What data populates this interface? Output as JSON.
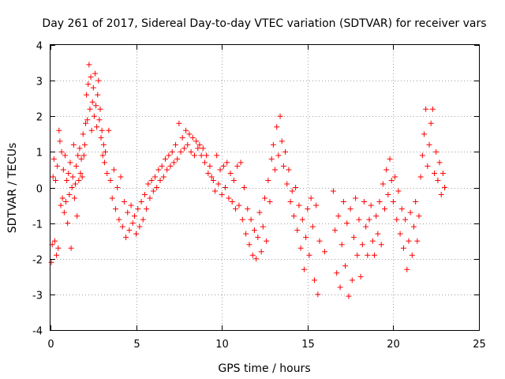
{
  "chart_data": {
    "type": "scatter",
    "title": "Day 261 of 2017, Sidereal Day-to-day VTEC variation (SDTVAR) for receiver vars",
    "xlabel": "GPS time / hours",
    "ylabel": "SDTVAR / TECUs",
    "xlim": [
      0,
      25
    ],
    "ylim": [
      -4,
      4
    ],
    "xticks": [
      0,
      5,
      10,
      15,
      20,
      25
    ],
    "yticks": [
      -4,
      -3,
      -2,
      -1,
      0,
      1,
      2,
      3,
      4
    ],
    "xtick_labels": [
      "0",
      "5",
      "10",
      "15",
      "20",
      "25"
    ],
    "ytick_labels": [
      "-4",
      "-3",
      "-2",
      "-1",
      "0",
      "1",
      "2",
      "3",
      "4"
    ],
    "grid": true,
    "marker": "+",
    "series": [
      {
        "name": "vars",
        "color": "#ff0000",
        "points": [
          [
            0.05,
            -2.1
          ],
          [
            0.1,
            -1.6
          ],
          [
            0.15,
            0.3
          ],
          [
            0.2,
            0.8
          ],
          [
            0.25,
            -1.5
          ],
          [
            0.3,
            0.2
          ],
          [
            0.35,
            -1.9
          ],
          [
            0.4,
            0.6
          ],
          [
            0.45,
            -1.7
          ],
          [
            0.5,
            1.6
          ],
          [
            0.55,
            1.3
          ],
          [
            0.6,
            -0.5
          ],
          [
            0.65,
            1.0
          ],
          [
            0.7,
            -0.3
          ],
          [
            0.75,
            0.5
          ],
          [
            0.8,
            -0.7
          ],
          [
            0.85,
            0.9
          ],
          [
            0.9,
            -0.4
          ],
          [
            0.95,
            0.2
          ],
          [
            1.0,
            -1.0
          ],
          [
            1.05,
            0.4
          ],
          [
            1.1,
            -0.2
          ],
          [
            1.15,
            0.7
          ],
          [
            1.2,
            -1.7
          ],
          [
            1.25,
            0.0
          ],
          [
            1.3,
            0.3
          ],
          [
            1.35,
            1.2
          ],
          [
            1.4,
            -0.3
          ],
          [
            1.45,
            0.1
          ],
          [
            1.5,
            0.6
          ],
          [
            1.55,
            -0.8
          ],
          [
            1.6,
            0.9
          ],
          [
            1.65,
            0.2
          ],
          [
            1.7,
            1.1
          ],
          [
            1.75,
            0.4
          ],
          [
            1.8,
            0.8
          ],
          [
            1.85,
            0.3
          ],
          [
            1.9,
            1.5
          ],
          [
            1.95,
            0.9
          ],
          [
            2.0,
            1.2
          ],
          [
            2.05,
            1.8
          ],
          [
            2.1,
            2.6
          ],
          [
            2.15,
            1.9
          ],
          [
            2.2,
            2.9
          ],
          [
            2.25,
            3.45
          ],
          [
            2.3,
            2.2
          ],
          [
            2.35,
            3.1
          ],
          [
            2.4,
            1.6
          ],
          [
            2.45,
            2.4
          ],
          [
            2.5,
            2.8
          ],
          [
            2.55,
            2.0
          ],
          [
            2.6,
            3.2
          ],
          [
            2.65,
            2.3
          ],
          [
            2.7,
            1.7
          ],
          [
            2.75,
            2.6
          ],
          [
            2.8,
            3.0
          ],
          [
            2.85,
            1.9
          ],
          [
            2.9,
            2.2
          ],
          [
            2.95,
            1.4
          ],
          [
            3.0,
            1.6
          ],
          [
            3.05,
            0.9
          ],
          [
            3.1,
            1.2
          ],
          [
            3.15,
            0.7
          ],
          [
            3.2,
            1.0
          ],
          [
            3.3,
            0.4
          ],
          [
            3.4,
            1.6
          ],
          [
            3.5,
            0.2
          ],
          [
            3.6,
            -0.3
          ],
          [
            3.7,
            0.5
          ],
          [
            3.8,
            -0.6
          ],
          [
            3.9,
            0.0
          ],
          [
            4.0,
            -0.9
          ],
          [
            4.1,
            0.3
          ],
          [
            4.2,
            -1.1
          ],
          [
            4.3,
            -0.4
          ],
          [
            4.4,
            -1.4
          ],
          [
            4.5,
            -0.7
          ],
          [
            4.6,
            -1.2
          ],
          [
            4.7,
            -0.5
          ],
          [
            4.8,
            -1.0
          ],
          [
            4.9,
            -0.8
          ],
          [
            5.0,
            -1.3
          ],
          [
            5.1,
            -0.6
          ],
          [
            5.2,
            -1.1
          ],
          [
            5.3,
            -0.4
          ],
          [
            5.4,
            -0.9
          ],
          [
            5.5,
            -0.2
          ],
          [
            5.6,
            -0.6
          ],
          [
            5.7,
            0.1
          ],
          [
            5.8,
            -0.3
          ],
          [
            5.9,
            0.2
          ],
          [
            6.0,
            -0.1
          ],
          [
            6.1,
            0.3
          ],
          [
            6.2,
            0.0
          ],
          [
            6.3,
            0.5
          ],
          [
            6.4,
            0.2
          ],
          [
            6.5,
            0.6
          ],
          [
            6.6,
            0.3
          ],
          [
            6.7,
            0.8
          ],
          [
            6.8,
            0.5
          ],
          [
            6.9,
            0.9
          ],
          [
            7.0,
            0.6
          ],
          [
            7.1,
            1.0
          ],
          [
            7.2,
            0.7
          ],
          [
            7.3,
            1.2
          ],
          [
            7.4,
            0.8
          ],
          [
            7.5,
            1.8
          ],
          [
            7.6,
            1.0
          ],
          [
            7.7,
            1.4
          ],
          [
            7.8,
            1.1
          ],
          [
            7.9,
            1.6
          ],
          [
            8.0,
            1.2
          ],
          [
            8.1,
            1.5
          ],
          [
            8.2,
            1.0
          ],
          [
            8.3,
            1.4
          ],
          [
            8.4,
            0.9
          ],
          [
            8.5,
            1.3
          ],
          [
            8.6,
            1.1
          ],
          [
            8.7,
            1.2
          ],
          [
            8.8,
            0.9
          ],
          [
            8.9,
            1.1
          ],
          [
            9.0,
            0.7
          ],
          [
            9.1,
            0.9
          ],
          [
            9.2,
            0.4
          ],
          [
            9.3,
            0.6
          ],
          [
            9.4,
            0.3
          ],
          [
            9.5,
            0.2
          ],
          [
            9.6,
            -0.1
          ],
          [
            9.7,
            0.9
          ],
          [
            9.8,
            0.1
          ],
          [
            9.9,
            0.5
          ],
          [
            10.0,
            -0.2
          ],
          [
            10.1,
            0.6
          ],
          [
            10.2,
            0.0
          ],
          [
            10.3,
            0.7
          ],
          [
            10.4,
            -0.3
          ],
          [
            10.5,
            0.4
          ],
          [
            10.6,
            -0.4
          ],
          [
            10.7,
            0.2
          ],
          [
            10.8,
            -0.6
          ],
          [
            10.9,
            0.6
          ],
          [
            11.0,
            -0.5
          ],
          [
            11.1,
            0.7
          ],
          [
            11.2,
            -0.9
          ],
          [
            11.3,
            0.0
          ],
          [
            11.4,
            -1.3
          ],
          [
            11.5,
            -0.6
          ],
          [
            11.6,
            -1.6
          ],
          [
            11.7,
            -0.9
          ],
          [
            11.8,
            -1.9
          ],
          [
            11.9,
            -1.2
          ],
          [
            12.0,
            -2.0
          ],
          [
            12.1,
            -1.4
          ],
          [
            12.2,
            -0.7
          ],
          [
            12.3,
            -1.8
          ],
          [
            12.4,
            -1.1
          ],
          [
            12.5,
            -0.3
          ],
          [
            12.6,
            -1.5
          ],
          [
            12.7,
            0.2
          ],
          [
            12.8,
            -0.4
          ],
          [
            12.9,
            0.8
          ],
          [
            13.0,
            1.2
          ],
          [
            13.1,
            0.5
          ],
          [
            13.2,
            1.7
          ],
          [
            13.3,
            0.9
          ],
          [
            13.4,
            2.0
          ],
          [
            13.5,
            1.3
          ],
          [
            13.6,
            0.6
          ],
          [
            13.7,
            1.0
          ],
          [
            13.8,
            0.1
          ],
          [
            13.9,
            0.5
          ],
          [
            14.0,
            -0.4
          ],
          [
            14.1,
            -0.1
          ],
          [
            14.2,
            -0.8
          ],
          [
            14.3,
            0.0
          ],
          [
            14.4,
            -1.2
          ],
          [
            14.5,
            -0.5
          ],
          [
            14.6,
            -1.7
          ],
          [
            14.7,
            -0.9
          ],
          [
            14.8,
            -2.3
          ],
          [
            14.9,
            -1.4
          ],
          [
            15.0,
            -0.6
          ],
          [
            15.1,
            -1.9
          ],
          [
            15.2,
            -0.3
          ],
          [
            15.3,
            -1.1
          ],
          [
            15.4,
            -2.6
          ],
          [
            15.5,
            -0.5
          ],
          [
            15.6,
            -3.0
          ],
          [
            15.7,
            -1.5
          ],
          [
            16.0,
            -1.8
          ],
          [
            16.5,
            -0.1
          ],
          [
            16.6,
            -1.2
          ],
          [
            16.7,
            -2.4
          ],
          [
            16.8,
            -0.8
          ],
          [
            16.9,
            -2.8
          ],
          [
            17.0,
            -1.6
          ],
          [
            17.1,
            -0.4
          ],
          [
            17.2,
            -2.2
          ],
          [
            17.3,
            -1.0
          ],
          [
            17.4,
            -3.05
          ],
          [
            17.5,
            -0.6
          ],
          [
            17.6,
            -2.6
          ],
          [
            17.7,
            -1.4
          ],
          [
            17.8,
            -0.3
          ],
          [
            17.9,
            -1.9
          ],
          [
            18.0,
            -0.9
          ],
          [
            18.1,
            -2.5
          ],
          [
            18.2,
            -1.6
          ],
          [
            18.3,
            -0.4
          ],
          [
            18.4,
            -1.1
          ],
          [
            18.5,
            -1.9
          ],
          [
            18.6,
            -0.9
          ],
          [
            18.7,
            -0.5
          ],
          [
            18.8,
            -1.5
          ],
          [
            18.9,
            -1.9
          ],
          [
            19.0,
            -0.8
          ],
          [
            19.1,
            -1.3
          ],
          [
            19.2,
            -0.4
          ],
          [
            19.3,
            -1.6
          ],
          [
            19.4,
            0.1
          ],
          [
            19.5,
            -0.6
          ],
          [
            19.6,
            0.5
          ],
          [
            19.7,
            -0.2
          ],
          [
            19.8,
            0.8
          ],
          [
            19.9,
            0.2
          ],
          [
            20.0,
            -0.4
          ],
          [
            20.1,
            0.3
          ],
          [
            20.2,
            -0.9
          ],
          [
            20.3,
            -0.1
          ],
          [
            20.4,
            -1.3
          ],
          [
            20.5,
            -0.6
          ],
          [
            20.6,
            -1.7
          ],
          [
            20.7,
            -0.9
          ],
          [
            20.8,
            -2.3
          ],
          [
            20.9,
            -1.5
          ],
          [
            21.0,
            -0.7
          ],
          [
            21.1,
            -1.9
          ],
          [
            21.2,
            -1.1
          ],
          [
            21.3,
            -0.4
          ],
          [
            21.4,
            -1.5
          ],
          [
            21.5,
            -0.8
          ],
          [
            21.6,
            0.3
          ],
          [
            21.7,
            0.9
          ],
          [
            21.8,
            1.5
          ],
          [
            21.9,
            2.2
          ],
          [
            22.0,
            0.6
          ],
          [
            22.1,
            1.2
          ],
          [
            22.2,
            1.8
          ],
          [
            22.3,
            2.2
          ],
          [
            22.4,
            0.4
          ],
          [
            22.5,
            1.0
          ],
          [
            22.6,
            0.2
          ],
          [
            22.7,
            0.7
          ],
          [
            22.8,
            -0.2
          ],
          [
            22.9,
            0.4
          ],
          [
            23.0,
            0.0
          ]
        ]
      }
    ]
  }
}
